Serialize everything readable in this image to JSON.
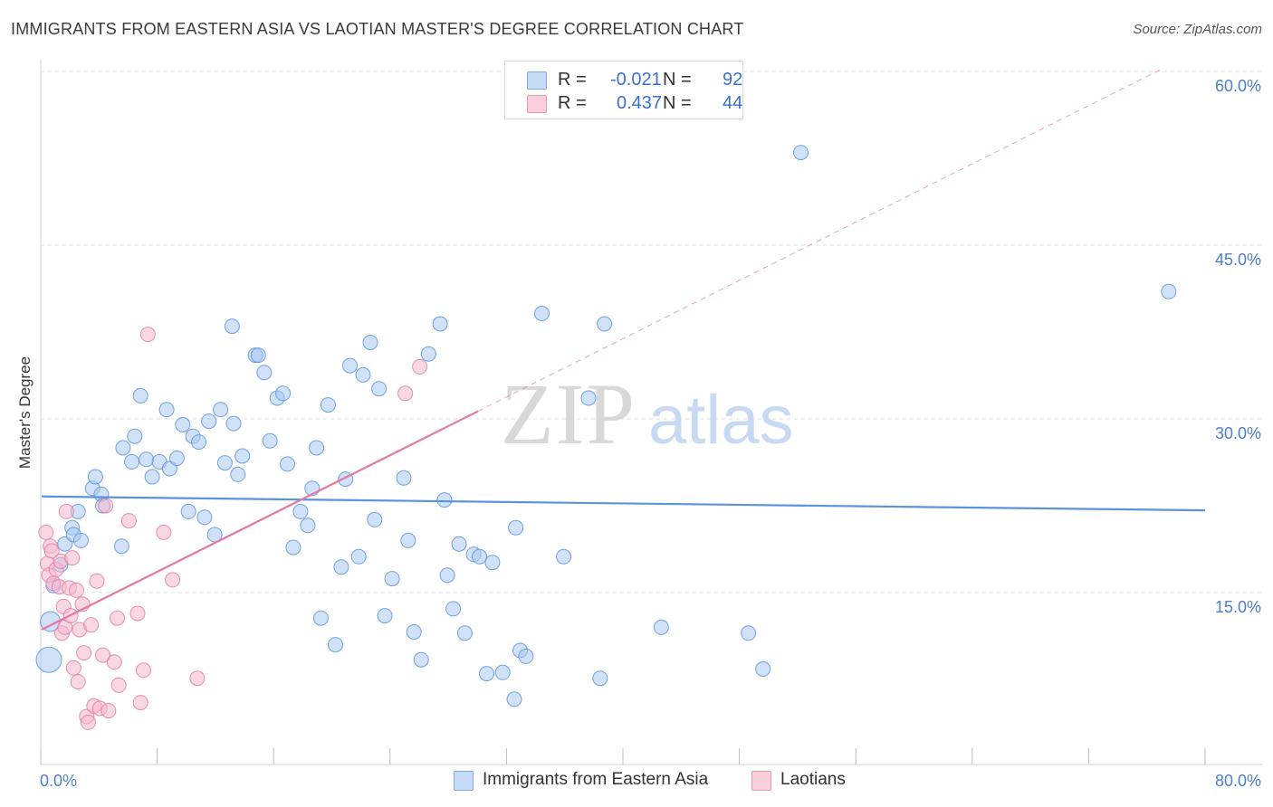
{
  "title": "IMMIGRANTS FROM EASTERN ASIA VS LAOTIAN MASTER'S DEGREE CORRELATION CHART",
  "source": "Source: ZipAtlas.com",
  "watermark": {
    "zip": "ZIP",
    "atlas": "atlas"
  },
  "legend": {
    "r_label": "R =",
    "n_label": "N =",
    "rows": [
      {
        "r": "-0.021",
        "n": "92",
        "color": "#a9c8f2"
      },
      {
        "r": "0.437",
        "n": "44",
        "color": "#f6b8cc"
      }
    ]
  },
  "bottom_legend": [
    {
      "label": "Immigrants from Eastern Asia",
      "color": "#a9c8f2"
    },
    {
      "label": "Laotians",
      "color": "#f6b8cc"
    }
  ],
  "chart_data": {
    "type": "scatter",
    "ylabel": "Master's Degree",
    "xlim": [
      0,
      80
    ],
    "ylim": [
      0,
      60
    ],
    "x_tick_labels": [
      "0.0%",
      "80.0%"
    ],
    "y_tick_labels": [
      "15.0%",
      "30.0%",
      "45.0%",
      "60.0%"
    ],
    "y_ticks": [
      15,
      30,
      45,
      60
    ],
    "grid": "horizontal dashed",
    "legend_position": "top-center",
    "series": [
      {
        "name": "Immigrants from Eastern Asia",
        "color": "#5b93dd",
        "fill": "#a9c8f2",
        "trend": {
          "x0": 0,
          "y0": 23.3,
          "x1": 80,
          "y1": 22.1,
          "solid_to": 80
        },
        "points": [
          [
            0.5,
            9.2,
            14
          ],
          [
            0.6,
            12.5,
            11
          ],
          [
            0.8,
            15.6,
            8
          ],
          [
            1.3,
            17.4,
            8
          ],
          [
            1.6,
            19.2,
            8
          ],
          [
            2.1,
            20.6,
            8
          ],
          [
            2.2,
            20.0,
            8
          ],
          [
            2.5,
            22.0,
            8
          ],
          [
            2.7,
            19.5,
            8
          ],
          [
            3.5,
            24.0,
            8
          ],
          [
            4.1,
            23.5,
            8
          ],
          [
            4.2,
            22.5,
            8
          ],
          [
            3.7,
            25.0,
            8
          ],
          [
            5.6,
            27.5,
            8
          ],
          [
            5.5,
            19.0,
            8
          ],
          [
            6.2,
            26.3,
            8
          ],
          [
            6.4,
            28.5,
            8
          ],
          [
            6.8,
            32.0,
            8
          ],
          [
            7.2,
            26.5,
            8
          ],
          [
            7.6,
            25.0,
            8
          ],
          [
            8.1,
            26.3,
            8
          ],
          [
            8.6,
            30.8,
            8
          ],
          [
            8.8,
            25.7,
            8
          ],
          [
            9.3,
            26.6,
            8
          ],
          [
            9.7,
            29.5,
            8
          ],
          [
            10.1,
            22.0,
            8
          ],
          [
            10.4,
            28.5,
            8
          ],
          [
            10.8,
            28.0,
            8
          ],
          [
            11.2,
            21.5,
            8
          ],
          [
            11.5,
            29.8,
            8
          ],
          [
            11.9,
            20.0,
            8
          ],
          [
            12.3,
            30.8,
            8
          ],
          [
            12.6,
            26.2,
            8
          ],
          [
            13.2,
            29.6,
            8
          ],
          [
            13.5,
            25.2,
            8
          ],
          [
            13.8,
            26.8,
            8
          ],
          [
            13.1,
            38.0,
            8
          ],
          [
            14.7,
            35.5,
            8
          ],
          [
            14.9,
            35.5,
            8
          ],
          [
            15.3,
            34.0,
            8
          ],
          [
            15.7,
            28.1,
            8
          ],
          [
            16.2,
            31.8,
            8
          ],
          [
            16.6,
            32.2,
            8
          ],
          [
            16.9,
            26.1,
            8
          ],
          [
            17.3,
            18.9,
            8
          ],
          [
            17.8,
            22.0,
            8
          ],
          [
            18.3,
            20.8,
            8
          ],
          [
            18.6,
            24.0,
            8
          ],
          [
            18.9,
            27.5,
            8
          ],
          [
            19.2,
            12.8,
            8
          ],
          [
            19.7,
            31.2,
            8
          ],
          [
            20.2,
            10.5,
            8
          ],
          [
            20.6,
            17.2,
            8
          ],
          [
            20.9,
            24.8,
            8
          ],
          [
            21.2,
            34.6,
            8
          ],
          [
            21.8,
            18.1,
            8
          ],
          [
            22.1,
            33.8,
            8
          ],
          [
            22.6,
            36.6,
            8
          ],
          [
            22.9,
            21.3,
            8
          ],
          [
            23.2,
            32.6,
            8
          ],
          [
            23.6,
            13.0,
            8
          ],
          [
            24.1,
            16.2,
            8
          ],
          [
            24.9,
            24.9,
            8
          ],
          [
            25.2,
            19.5,
            8
          ],
          [
            25.6,
            11.6,
            8
          ],
          [
            26.1,
            9.2,
            8
          ],
          [
            26.6,
            35.6,
            8
          ],
          [
            27.4,
            38.2,
            8
          ],
          [
            27.9,
            16.5,
            8
          ],
          [
            28.3,
            13.6,
            8
          ],
          [
            27.7,
            23.0,
            8
          ],
          [
            28.7,
            19.2,
            8
          ],
          [
            29.1,
            11.5,
            8
          ],
          [
            29.7,
            18.3,
            8
          ],
          [
            30.1,
            18.1,
            8
          ],
          [
            30.6,
            8.0,
            8
          ],
          [
            31.0,
            17.6,
            8
          ],
          [
            31.7,
            8.1,
            8
          ],
          [
            32.5,
            5.8,
            8
          ],
          [
            32.6,
            20.6,
            8
          ],
          [
            32.9,
            10.0,
            8
          ],
          [
            33.3,
            9.5,
            8
          ],
          [
            34.4,
            39.1,
            8
          ],
          [
            35.9,
            18.1,
            8
          ],
          [
            37.6,
            31.8,
            8
          ],
          [
            38.4,
            7.6,
            8
          ],
          [
            38.7,
            38.2,
            8
          ],
          [
            42.6,
            12.0,
            8
          ],
          [
            48.6,
            11.5,
            8
          ],
          [
            49.6,
            8.4,
            8
          ],
          [
            52.2,
            53.0,
            8
          ],
          [
            77.5,
            41.0,
            8
          ]
        ]
      },
      {
        "name": "Laotians",
        "color": "#e47aa2",
        "fill": "#f6b8cc",
        "trend": {
          "x0": 0,
          "y0": 11.8,
          "x1": 77,
          "y1": 60.2,
          "solid_to": 30.0
        },
        "points": [
          [
            0.3,
            20.2,
            8
          ],
          [
            0.4,
            17.5,
            8
          ],
          [
            0.5,
            16.5,
            8
          ],
          [
            0.6,
            19.0,
            8
          ],
          [
            0.7,
            18.6,
            8
          ],
          [
            0.8,
            15.8,
            8
          ],
          [
            1.0,
            17.0,
            8
          ],
          [
            1.2,
            15.5,
            8
          ],
          [
            1.3,
            17.7,
            8
          ],
          [
            1.4,
            11.5,
            8
          ],
          [
            1.5,
            13.8,
            8
          ],
          [
            1.6,
            12.0,
            8
          ],
          [
            1.7,
            22.0,
            8
          ],
          [
            1.9,
            15.4,
            8
          ],
          [
            2.0,
            13.0,
            8
          ],
          [
            2.1,
            18.0,
            8
          ],
          [
            2.2,
            8.5,
            8
          ],
          [
            2.4,
            15.2,
            8
          ],
          [
            2.5,
            7.3,
            8
          ],
          [
            2.6,
            11.8,
            8
          ],
          [
            2.8,
            14.0,
            8
          ],
          [
            2.9,
            9.8,
            8
          ],
          [
            3.1,
            4.3,
            8
          ],
          [
            3.2,
            3.8,
            8
          ],
          [
            3.4,
            12.2,
            8
          ],
          [
            3.6,
            5.2,
            8
          ],
          [
            3.8,
            16.0,
            8
          ],
          [
            4.0,
            5.0,
            8
          ],
          [
            4.2,
            9.6,
            8
          ],
          [
            4.4,
            22.5,
            8
          ],
          [
            4.6,
            4.8,
            8
          ],
          [
            5.0,
            9.0,
            8
          ],
          [
            5.2,
            12.8,
            8
          ],
          [
            5.3,
            7.0,
            8
          ],
          [
            6.0,
            21.2,
            8
          ],
          [
            6.6,
            13.2,
            8
          ],
          [
            6.8,
            5.5,
            8
          ],
          [
            7.0,
            8.3,
            8
          ],
          [
            7.3,
            37.3,
            8
          ],
          [
            8.4,
            20.2,
            8
          ],
          [
            9.0,
            16.1,
            8
          ],
          [
            10.7,
            7.6,
            8
          ],
          [
            25.0,
            32.2,
            8
          ],
          [
            26.0,
            34.5,
            8
          ]
        ]
      }
    ]
  }
}
